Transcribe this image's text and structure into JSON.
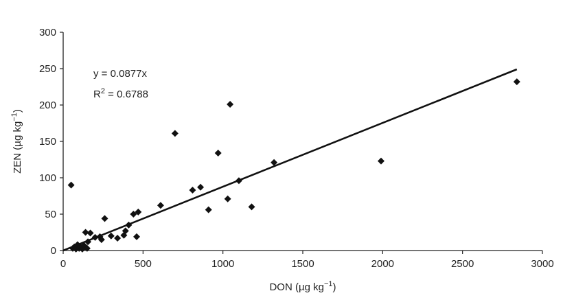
{
  "chart_data": {
    "type": "scatter",
    "xlabel": "DON (µg kg",
    "xlabel_sup": "−1",
    "xlabel_end": ")",
    "ylabel": "ZEN (µg kg",
    "ylabel_sup": "−1",
    "ylabel_end": ")",
    "xlim": [
      0,
      3000
    ],
    "ylim": [
      0,
      300
    ],
    "xticks": [
      0,
      500,
      1000,
      1500,
      2000,
      2500,
      3000
    ],
    "yticks": [
      0,
      50,
      100,
      150,
      200,
      250,
      300
    ],
    "grid": false,
    "legend": "none",
    "annotations": {
      "equation": "y = 0.0877x",
      "r2_prefix": "R",
      "r2_sup": "2",
      "r2_suffix": " = 0.6788"
    },
    "trendline": {
      "slope": 0.0877,
      "x_start": 0,
      "x_end": 2840
    },
    "points": [
      [
        50,
        90
      ],
      [
        60,
        3
      ],
      [
        70,
        5
      ],
      [
        80,
        2
      ],
      [
        90,
        8
      ],
      [
        100,
        3
      ],
      [
        110,
        5
      ],
      [
        120,
        2
      ],
      [
        130,
        7
      ],
      [
        140,
        25
      ],
      [
        150,
        3
      ],
      [
        155,
        12
      ],
      [
        170,
        24
      ],
      [
        200,
        18
      ],
      [
        230,
        19
      ],
      [
        240,
        15
      ],
      [
        260,
        44
      ],
      [
        300,
        20
      ],
      [
        340,
        17
      ],
      [
        380,
        21
      ],
      [
        390,
        27
      ],
      [
        410,
        35
      ],
      [
        440,
        50
      ],
      [
        460,
        19
      ],
      [
        470,
        53
      ],
      [
        610,
        62
      ],
      [
        700,
        161
      ],
      [
        810,
        83
      ],
      [
        860,
        87
      ],
      [
        910,
        56
      ],
      [
        970,
        134
      ],
      [
        1030,
        71
      ],
      [
        1045,
        201
      ],
      [
        1100,
        96
      ],
      [
        1180,
        60
      ],
      [
        1320,
        121
      ],
      [
        1990,
        123
      ],
      [
        2840,
        232
      ]
    ]
  }
}
